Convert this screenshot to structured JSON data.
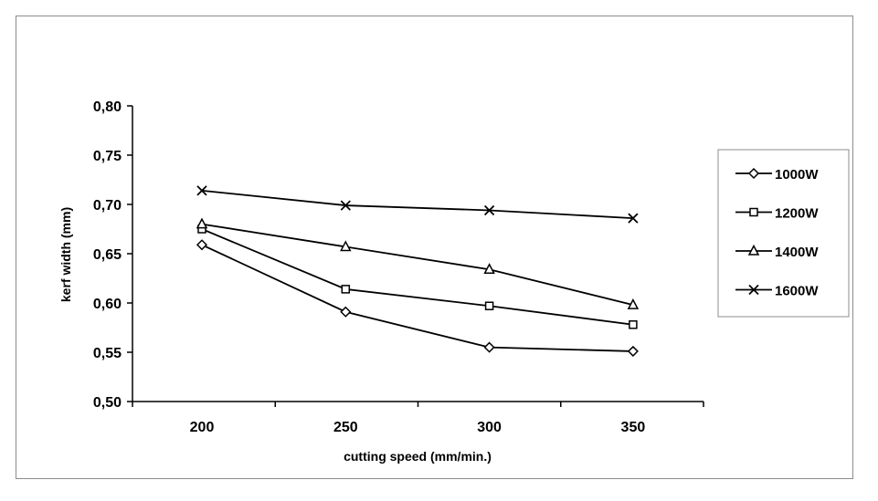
{
  "chart_data": {
    "type": "line",
    "title": "",
    "xlabel": "cutting speed (mm/min.)",
    "ylabel": "kerf width (mm)",
    "categories": [
      "200",
      "250",
      "300",
      "350"
    ],
    "x": [
      200,
      250,
      300,
      350
    ],
    "ylim": [
      0.5,
      0.8
    ],
    "yticks": [
      "0,50",
      "0,55",
      "0,60",
      "0,65",
      "0,70",
      "0,75",
      "0,80"
    ],
    "ytick_values": [
      0.5,
      0.55,
      0.6,
      0.65,
      0.7,
      0.75,
      0.8
    ],
    "grid": false,
    "legend_position": "right",
    "line_color": "#000000",
    "series": [
      {
        "name": "1000W",
        "marker": "diamond",
        "values": [
          0.659,
          0.591,
          0.555,
          0.551
        ]
      },
      {
        "name": "1200W",
        "marker": "square",
        "values": [
          0.675,
          0.614,
          0.597,
          0.578
        ]
      },
      {
        "name": "1400W",
        "marker": "triangle",
        "values": [
          0.68,
          0.657,
          0.634,
          0.598
        ]
      },
      {
        "name": "1600W",
        "marker": "x",
        "values": [
          0.714,
          0.699,
          0.694,
          0.686
        ]
      }
    ]
  }
}
